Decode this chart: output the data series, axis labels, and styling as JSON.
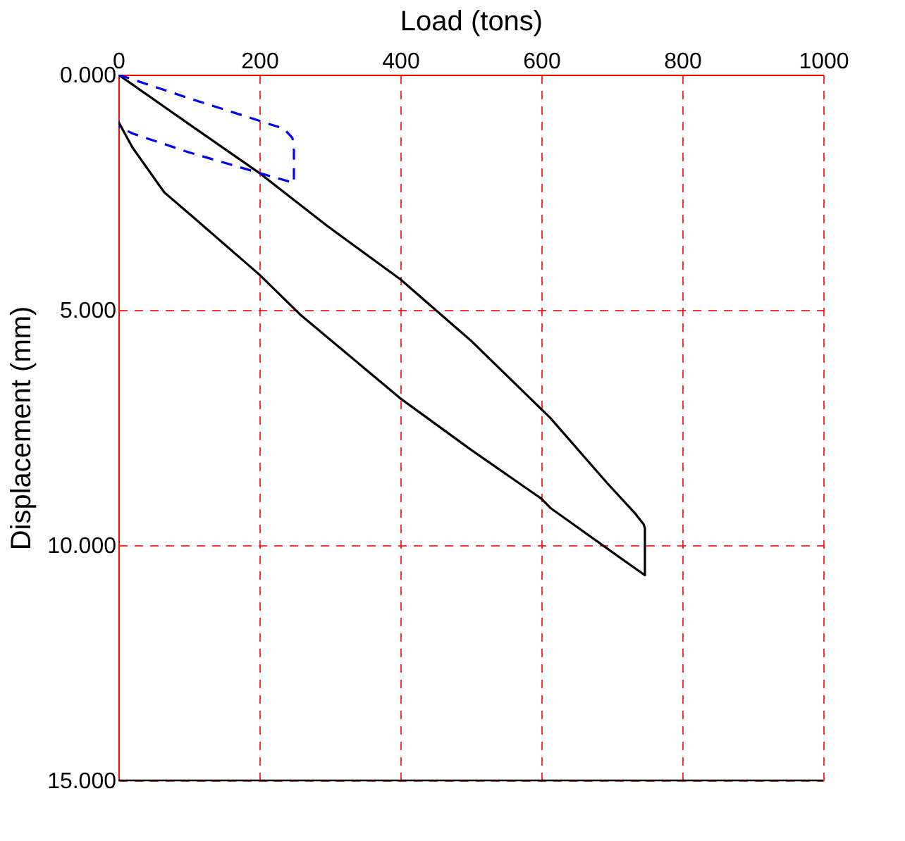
{
  "chart_data": {
    "type": "line",
    "xlabel": "Load (tons)",
    "ylabel": "Displacement (mm)",
    "xlim": [
      0,
      1000
    ],
    "xticks": [
      0,
      200,
      400,
      600,
      800,
      1000
    ],
    "ylim": [
      15,
      0
    ],
    "yticks": [
      {
        "value": 0,
        "label": "0.000"
      },
      {
        "value": 5,
        "label": "5.000"
      },
      {
        "value": 10,
        "label": "10.000"
      },
      {
        "value": 15,
        "label": "15.000"
      }
    ],
    "grid": true,
    "marker": "none",
    "series": [
      {
        "color": "#000000",
        "line_style": "solid",
        "x": [
          0,
          100,
          200,
          295,
          400,
          500,
          613,
          694,
          734,
          745,
          747,
          747,
          700,
          613,
          600,
          500,
          400,
          258,
          200,
          100,
          65,
          20,
          0
        ],
        "values": [
          0,
          1.05,
          2.09,
          3.2,
          4.35,
          5.65,
          7.3,
          8.69,
          9.34,
          9.55,
          9.64,
          10.64,
          10.14,
          9.21,
          9.01,
          7.97,
          6.88,
          5.1,
          4.25,
          2.95,
          2.5,
          1.55,
          1.0
        ]
      },
      {
        "color": "#0000ff",
        "line_style": "dashed",
        "x": [
          0,
          100,
          200,
          235,
          247,
          249,
          249,
          200,
          100,
          20,
          0
        ],
        "values": [
          0,
          0.5,
          0.98,
          1.15,
          1.35,
          1.6,
          2.3,
          2.09,
          1.65,
          1.25,
          1.1
        ]
      }
    ]
  }
}
